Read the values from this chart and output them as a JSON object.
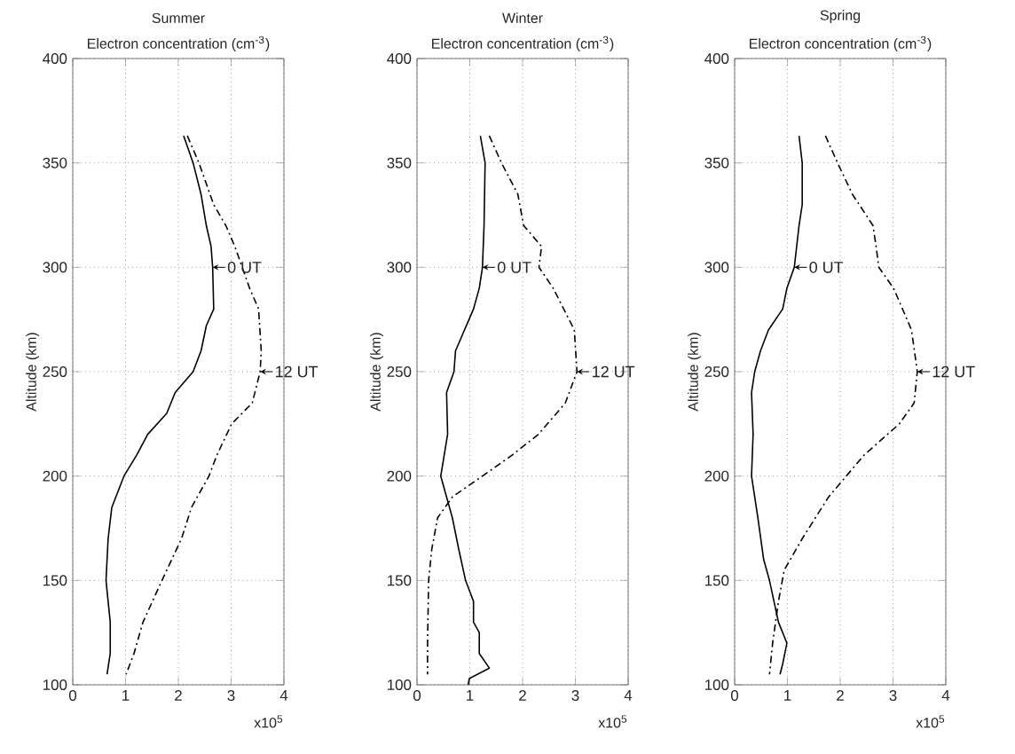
{
  "chart_data": [
    {
      "type": "line",
      "title": "Summer",
      "xlabel": "Electron concentration (cm$^{-3}$)",
      "ylabel": "Altitude (km)",
      "xlim": [
        0,
        4
      ],
      "xticks": [
        0,
        1,
        2,
        3,
        4
      ],
      "ylim": [
        100,
        400
      ],
      "yticks": [
        100,
        150,
        200,
        250,
        300,
        350,
        400
      ],
      "grid": true,
      "series": [
        {
          "color": "#000000",
          "line_style": "solid",
          "x": [
            2.1,
            2.28,
            2.43,
            2.53,
            2.62,
            2.65,
            2.67,
            2.53,
            2.43,
            2.28,
            1.94,
            1.78,
            1.42,
            1.21,
            0.97,
            0.74,
            0.67,
            0.63,
            0.71,
            0.71,
            0.65
          ],
          "values": [
            363,
            350,
            335,
            320,
            310,
            300,
            280,
            272,
            260,
            250,
            240,
            230,
            220,
            210,
            200,
            185,
            170,
            150,
            130,
            115,
            105
          ]
        },
        {
          "color": "#000000",
          "line_style": "dashed",
          "x": [
            2.17,
            2.39,
            2.67,
            2.9,
            3.07,
            3.35,
            3.52,
            3.57,
            3.55,
            3.4,
            3.01,
            2.73,
            2.58,
            2.25,
            2.06,
            1.69,
            1.33,
            1.16,
            1.01
          ],
          "values": [
            363,
            350,
            330,
            320,
            310,
            290,
            280,
            260,
            250,
            235,
            225,
            210,
            200,
            185,
            170,
            150,
            130,
            115,
            105
          ]
        }
      ],
      "annotations": [
        {
          "text": "0 UT",
          "x": 2.65,
          "y": 300
        },
        {
          "text": "12 UT",
          "x": 3.55,
          "y": 250
        },
        "x10$^{5}$"
      ]
    },
    {
      "type": "line",
      "title": "Winter",
      "xlabel": "Electron concentration (cm$^{-3}$)",
      "ylabel": "Altitude (km)",
      "xlim": [
        0,
        4
      ],
      "xticks": [
        0,
        1,
        2,
        3,
        4
      ],
      "ylim": [
        100,
        400
      ],
      "yticks": [
        100,
        150,
        200,
        250,
        300,
        350,
        400
      ],
      "grid": true,
      "series": [
        {
          "color": "#000000",
          "line_style": "solid",
          "x": [
            1.2,
            1.29,
            1.27,
            1.24,
            1.18,
            1.07,
            0.9,
            0.73,
            0.7,
            0.56,
            0.58,
            0.45,
            0.56,
            0.67,
            0.79,
            0.92,
            1.07,
            1.07,
            1.18,
            1.18,
            1.37,
            0.99,
            0.97
          ],
          "values": [
            363,
            350,
            320,
            300,
            290,
            280,
            270,
            260,
            250,
            240,
            220,
            200,
            190,
            180,
            165,
            150,
            140,
            130,
            125,
            115,
            108,
            103,
            100
          ]
        },
        {
          "color": "#000000",
          "line_style": "dashed",
          "x": [
            1.37,
            1.6,
            1.91,
            2.02,
            2.36,
            2.31,
            2.58,
            2.98,
            3.03,
            2.81,
            2.3,
            1.8,
            1.24,
            0.67,
            0.39,
            0.28,
            0.22,
            0.2,
            0.2
          ],
          "values": [
            363,
            350,
            335,
            320,
            310,
            300,
            290,
            270,
            250,
            235,
            220,
            210,
            200,
            190,
            180,
            165,
            150,
            120,
            105
          ]
        }
      ],
      "annotations": [
        {
          "text": "0 UT",
          "x": 1.24,
          "y": 300
        },
        {
          "text": "12 UT",
          "x": 3.03,
          "y": 250
        },
        "x10$^{5}$"
      ]
    },
    {
      "type": "line",
      "title": "Spring",
      "xlabel": "Electron concentration (cm$^{-3}$)",
      "ylabel": "Altitude (km)",
      "xlim": [
        0,
        4
      ],
      "xticks": [
        0,
        1,
        2,
        3,
        4
      ],
      "ylim": [
        100,
        400
      ],
      "yticks": [
        100,
        150,
        200,
        250,
        300,
        350,
        400
      ],
      "grid": true,
      "series": [
        {
          "color": "#000000",
          "line_style": "solid",
          "x": [
            1.22,
            1.28,
            1.28,
            1.22,
            1.13,
            0.99,
            0.91,
            0.64,
            0.49,
            0.38,
            0.32,
            0.35,
            0.32,
            0.44,
            0.55,
            0.66,
            0.83,
            0.99,
            0.91,
            0.86
          ],
          "values": [
            363,
            350,
            330,
            320,
            300,
            290,
            280,
            270,
            260,
            250,
            240,
            220,
            200,
            180,
            160,
            150,
            130,
            120,
            110,
            105
          ]
        },
        {
          "color": "#000000",
          "line_style": "dashed",
          "x": [
            1.72,
            1.95,
            2.23,
            2.62,
            2.68,
            2.73,
            3.01,
            3.35,
            3.46,
            3.4,
            3.12,
            2.45,
            1.78,
            1.28,
            0.94,
            0.83,
            0.72,
            0.66
          ],
          "values": [
            363,
            350,
            335,
            320,
            310,
            300,
            290,
            270,
            250,
            235,
            225,
            210,
            190,
            170,
            155,
            140,
            120,
            105
          ]
        }
      ],
      "annotations": [
        {
          "text": "0 UT",
          "x": 1.13,
          "y": 300
        },
        {
          "text": "12 UT",
          "x": 3.46,
          "y": 250
        },
        "x10$^{5}$"
      ]
    }
  ]
}
